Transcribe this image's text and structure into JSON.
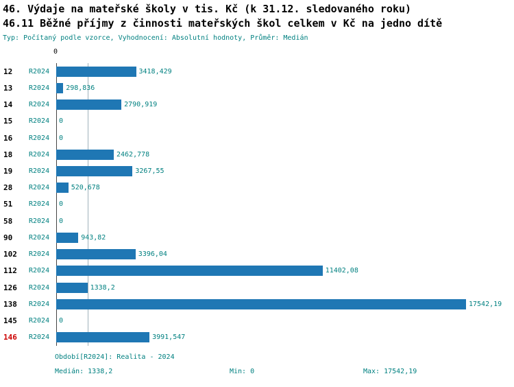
{
  "header": {
    "title_line1": "46. Výdaje na mateřské školy v tis. Kč (k 31.12. sledovaného roku)",
    "title_line2": "46.11 Běžné příjmy z činnosti mateřských škol celkem v Kč na jedno dítě",
    "subtitle": "Typ: Počítaný podle vzorce, Vyhodnocení: Absolutní hodnoty, Průměr: Medián"
  },
  "chart_data": {
    "type": "bar",
    "orientation": "horizontal",
    "axis_zero_label": "0",
    "series_label": "R2024",
    "categories": [
      "12",
      "13",
      "14",
      "15",
      "16",
      "18",
      "19",
      "28",
      "51",
      "58",
      "90",
      "102",
      "112",
      "126",
      "138",
      "145",
      "146"
    ],
    "values": [
      3418.429,
      298.836,
      2790.919,
      0,
      0,
      2462.778,
      3267.55,
      520.678,
      0,
      0,
      943.82,
      3396.04,
      11402.08,
      1338.2,
      17542.19,
      0,
      3991.547
    ],
    "value_labels": [
      "3418,429",
      "298,836",
      "2790,919",
      "0",
      "0",
      "2462,778",
      "3267,55",
      "520,678",
      "0",
      "0",
      "943,82",
      "3396,04",
      "11402,08",
      "1338,2",
      "17542,19",
      "0",
      "3991,547"
    ],
    "highlighted_category": "146",
    "highlight_color": "#cc0000",
    "bar_color": "#1f77b4",
    "xlim": [
      0,
      17542.19
    ],
    "median": 1338.2,
    "grid": "median-line-only",
    "legend": "none"
  },
  "footer": {
    "period_label": "Období[R2024]: Realita - 2024",
    "median_label": "Medián: 1338,2",
    "min_label": "Min: 0",
    "max_label": "Max: 17542,19"
  }
}
